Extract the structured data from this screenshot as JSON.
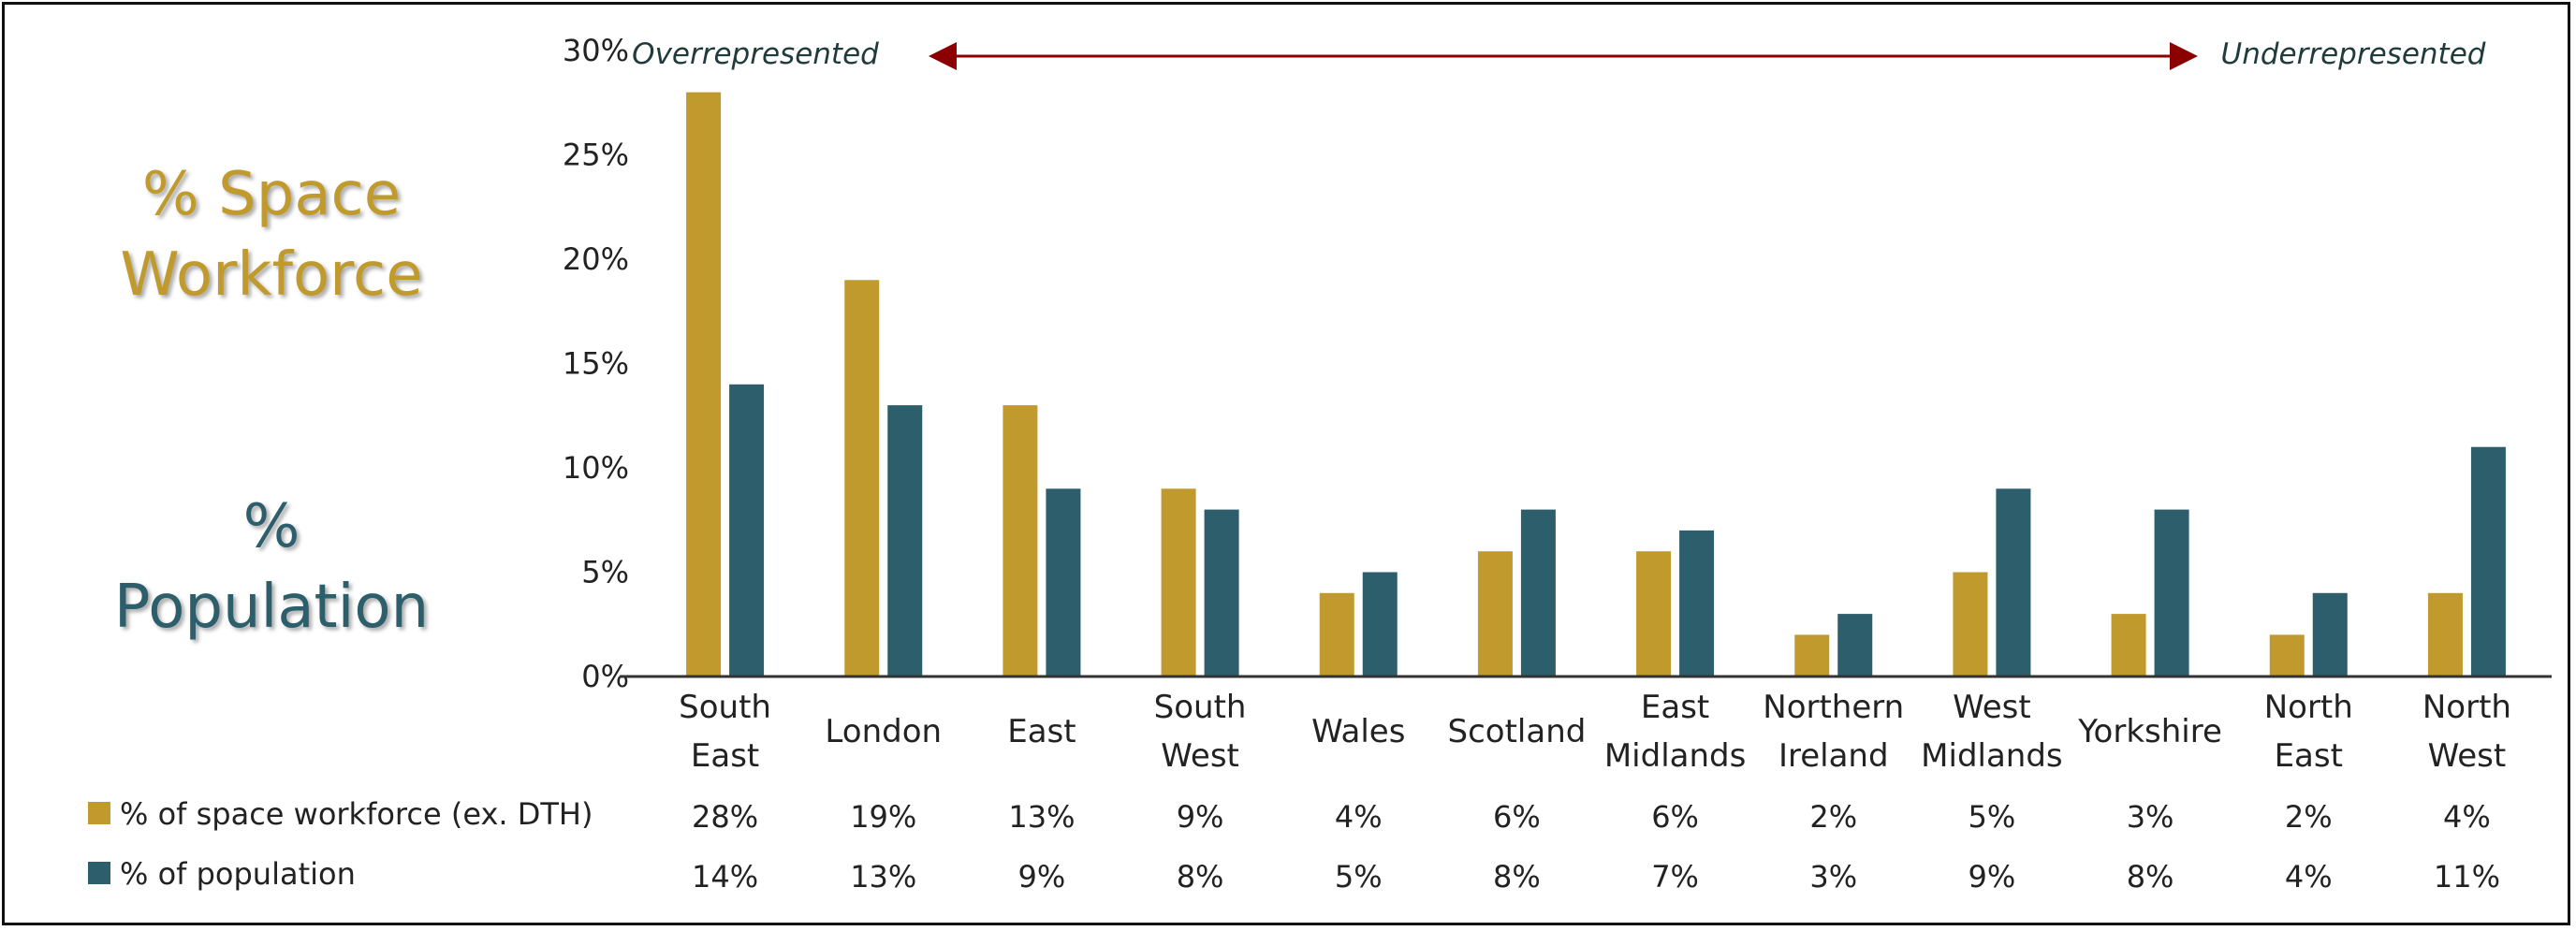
{
  "colors": {
    "space": "#C09A2C",
    "population": "#2C5E6B",
    "arrow": "#8B0000",
    "annotation_text": "#1F3B3B",
    "axis_text": "#222222"
  },
  "side_labels": {
    "space_line1": "% Space",
    "space_line2": "Workforce",
    "pop_line1": "%",
    "pop_line2": "Population"
  },
  "chart_data": {
    "type": "bar",
    "categories": [
      [
        "South",
        "East"
      ],
      [
        "London"
      ],
      [
        "East"
      ],
      [
        "South",
        "West"
      ],
      [
        "Wales"
      ],
      [
        "Scotland"
      ],
      [
        "East",
        "Midlands"
      ],
      [
        "Northern",
        "Ireland"
      ],
      [
        "West",
        "Midlands"
      ],
      [
        "Yorkshire"
      ],
      [
        "North",
        "East"
      ],
      [
        "North",
        "West"
      ]
    ],
    "series": [
      {
        "name": "% of space workforce (ex. DTH)",
        "values": [
          28,
          19,
          13,
          9,
          4,
          6,
          6,
          2,
          5,
          3,
          2,
          4
        ],
        "labels": [
          "28%",
          "19%",
          "13%",
          "9%",
          "4%",
          "6%",
          "6%",
          "2%",
          "5%",
          "3%",
          "2%",
          "4%"
        ]
      },
      {
        "name": "% of population",
        "values": [
          14,
          13,
          9,
          8,
          5,
          8,
          7,
          3,
          9,
          8,
          4,
          11
        ],
        "labels": [
          "14%",
          "13%",
          "9%",
          "8%",
          "5%",
          "8%",
          "7%",
          "3%",
          "9%",
          "8%",
          "4%",
          "11%"
        ]
      }
    ],
    "ylim": [
      0,
      30
    ],
    "yticks": [
      "0%",
      "5%",
      "10%",
      "15%",
      "20%",
      "25%",
      "30%"
    ],
    "grid": false,
    "legend": "data-table-below",
    "annotations": {
      "left": "Overrepresented",
      "right": "Underrepresented",
      "arrow": "double-headed"
    }
  }
}
